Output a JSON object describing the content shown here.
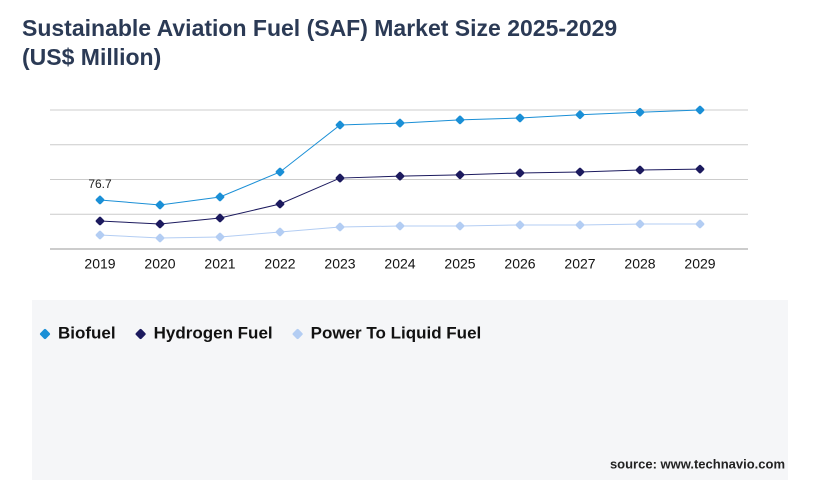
{
  "chart_data": {
    "type": "line",
    "title": "Sustainable Aviation Fuel (SAF) Market Size 2025-2029",
    "subtitle": "(US$ Million)",
    "categories": [
      "2019",
      "2020",
      "2021",
      "2022",
      "2023",
      "2024",
      "2025",
      "2026",
      "2027",
      "2028",
      "2029"
    ],
    "series": [
      {
        "name": "Biofuel",
        "color": "#1a8fd6",
        "values": [
          76.7,
          68.9,
          81.4,
          120.5,
          194,
          197,
          202,
          205,
          210,
          214,
          217.5
        ]
      },
      {
        "name": "Hydrogen Fuel",
        "color": "#1c1a5e",
        "values": [
          43.8,
          39.1,
          48.5,
          70.4,
          111,
          114,
          116,
          119,
          120.5,
          123.6,
          125
        ]
      },
      {
        "name": "Power To Liquid Fuel",
        "color": "#b3cdf3",
        "values": [
          21.9,
          17.2,
          18.8,
          26.6,
          34.4,
          36,
          36,
          37.6,
          37.6,
          39.1,
          39.1
        ]
      }
    ],
    "ylim": [
      0,
      220
    ],
    "source": "source: www.technavio.com"
  }
}
